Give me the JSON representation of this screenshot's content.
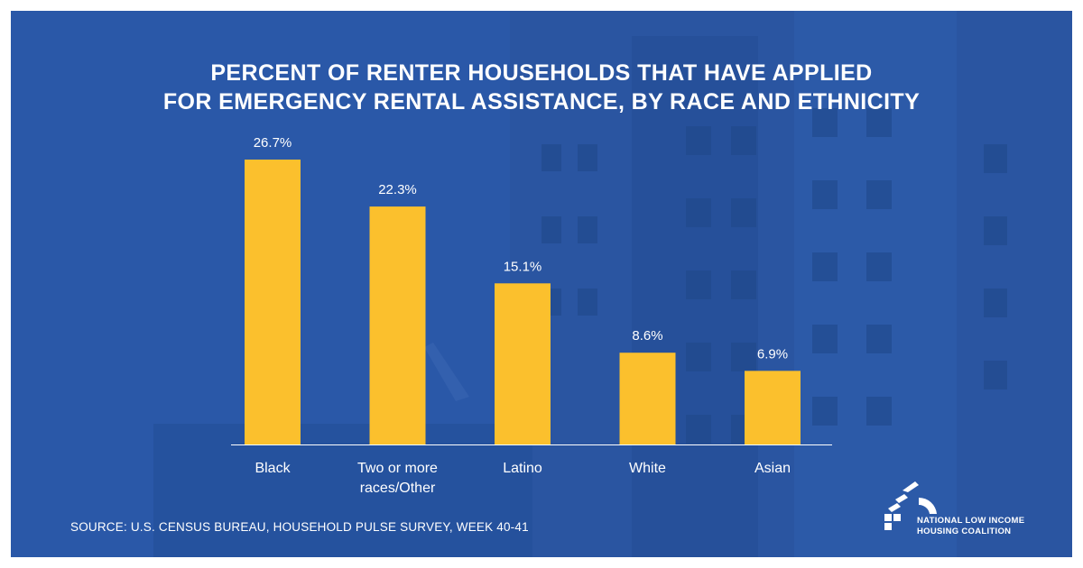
{
  "title": {
    "line1": "PERCENT OF RENTER HOUSEHOLDS THAT HAVE APPLIED",
    "line2": "FOR EMERGENCY RENTAL ASSISTANCE, BY RACE AND ETHNICITY"
  },
  "source": "SOURCE: U.S. CENSUS BUREAU, HOUSEHOLD PULSE SURVEY, WEEK 40-41",
  "logo": {
    "line1": "NATIONAL LOW INCOME",
    "line2": "HOUSING COALITION"
  },
  "colors": {
    "background": "#2a58a8",
    "bar": "#fbc02d",
    "text": "#ffffff",
    "axis": "#ffffff"
  },
  "chart_data": {
    "type": "bar",
    "title": "PERCENT OF RENTER HOUSEHOLDS THAT HAVE APPLIED FOR EMERGENCY RENTAL ASSISTANCE, BY RACE AND ETHNICITY",
    "categories": [
      "Black",
      "Two or more races/Other",
      "Latino",
      "White",
      "Asian"
    ],
    "category_lines": [
      [
        "Black"
      ],
      [
        "Two or more",
        "races/Other"
      ],
      [
        "Latino"
      ],
      [
        "White"
      ],
      [
        "Asian"
      ]
    ],
    "values": [
      26.7,
      22.3,
      15.1,
      8.6,
      6.9
    ],
    "value_labels": [
      "26.7%",
      "22.3%",
      "15.1%",
      "8.6%",
      "6.9%"
    ],
    "ylim": [
      0,
      26.7
    ],
    "xlabel": "",
    "ylabel": "",
    "grid": false,
    "legend": "none"
  }
}
